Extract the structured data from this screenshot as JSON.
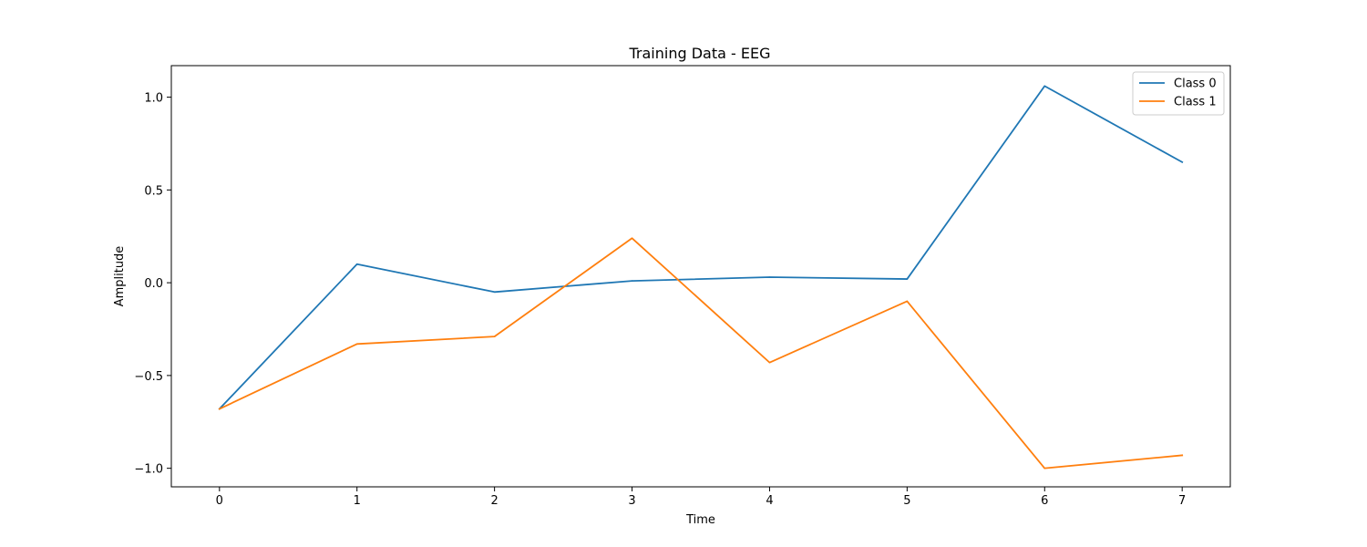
{
  "chart_data": {
    "type": "line",
    "title": "Training Data - EEG",
    "xlabel": "Time",
    "ylabel": "Amplitude",
    "x": [
      0,
      1,
      2,
      3,
      4,
      5,
      6,
      7
    ],
    "xlim": [
      -0.35,
      7.35
    ],
    "ylim": [
      -1.1,
      1.17
    ],
    "xticks": [
      0,
      1,
      2,
      3,
      4,
      5,
      6,
      7
    ],
    "yticks": [
      1.0,
      0.5,
      0.0,
      -0.5,
      -1.0
    ],
    "ytick_labels": [
      "1.0",
      "0.5",
      "0.0",
      "−0.5",
      "−1.0"
    ],
    "grid": false,
    "legend_position": "top-right",
    "series": [
      {
        "name": "Class 0",
        "color": "#1f77b4",
        "values": [
          -0.68,
          0.1,
          -0.05,
          0.01,
          0.03,
          0.02,
          1.06,
          0.65
        ]
      },
      {
        "name": "Class 1",
        "color": "#ff7f0e",
        "values": [
          -0.68,
          -0.33,
          -0.29,
          0.24,
          -0.43,
          -0.1,
          -1.0,
          -0.93
        ]
      }
    ]
  }
}
